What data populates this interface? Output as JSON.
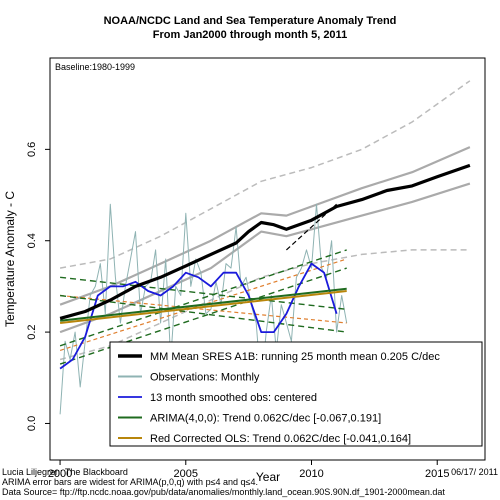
{
  "chart_data": {
    "type": "line",
    "title": "NOAA/NCDC Land and Sea Temperature Anomaly Trend",
    "subtitle": "From Jan2000 through month 5, 2011",
    "xlabel": "Year",
    "ylabel": "Temperature Anomaly - C",
    "xlim": [
      1999.6,
      2016.9
    ],
    "ylim": [
      -0.08,
      0.8
    ],
    "x_ticks": [
      2000,
      2005,
      2010,
      2015
    ],
    "y_ticks": [
      0.0,
      0.2,
      0.4,
      0.6
    ],
    "baseline_label": "Baseline:1980-1999",
    "legend_position": "bottom-right",
    "legend": [
      {
        "label": "MM Mean SRES A1B: running 25 month mean 0.205 C/dec",
        "color": "#000000"
      },
      {
        "label": "Observations: Monthly",
        "color": "#8fb3b3"
      },
      {
        "label": "13 month smoothed obs: centered",
        "color": "#1a1adb"
      },
      {
        "label": "ARIMA(4,0,0): Trend 0.062C/dec [-0.067,0.191]",
        "color": "#1f6b1f"
      },
      {
        "label": "Red Corrected OLS: Trend 0.062C/dec [-0.041,0.164]",
        "color": "#b8860b"
      }
    ],
    "series": [
      {
        "name": "MM Mean SRES A1B: running 25 month mean 0.205 C/dec",
        "color": "#000000",
        "x": [
          2000.0,
          2001.0,
          2002.0,
          2003.0,
          2004.0,
          2005.0,
          2006.0,
          2007.0,
          2007.5,
          2008.0,
          2008.5,
          2009.0,
          2010.0,
          2011.0,
          2012.0,
          2013.0,
          2014.0,
          2015.0,
          2016.3
        ],
        "y": [
          0.23,
          0.245,
          0.27,
          0.3,
          0.32,
          0.345,
          0.37,
          0.395,
          0.42,
          0.44,
          0.435,
          0.425,
          0.445,
          0.475,
          0.49,
          0.51,
          0.52,
          0.54,
          0.565
        ]
      },
      {
        "name": "MM spread upper",
        "color": "#aaaaaa",
        "x": [
          2000.0,
          2002.0,
          2004.0,
          2006.0,
          2008.0,
          2009.0,
          2010.0,
          2012.0,
          2014.0,
          2016.3
        ],
        "y": [
          0.26,
          0.3,
          0.35,
          0.4,
          0.46,
          0.455,
          0.475,
          0.515,
          0.55,
          0.605
        ]
      },
      {
        "name": "MM spread lower",
        "color": "#aaaaaa",
        "x": [
          2000.0,
          2002.0,
          2004.0,
          2006.0,
          2008.0,
          2009.0,
          2010.0,
          2012.0,
          2014.0,
          2016.3
        ],
        "y": [
          0.2,
          0.24,
          0.29,
          0.34,
          0.42,
          0.41,
          0.425,
          0.455,
          0.485,
          0.525
        ]
      },
      {
        "name": "MM envelope upper (dashed)",
        "color": "#bbbbbb",
        "x": [
          2000.0,
          2002.0,
          2004.0,
          2006.0,
          2008.0,
          2010.0,
          2012.0,
          2014.0,
          2016.3
        ],
        "y": [
          0.34,
          0.36,
          0.41,
          0.47,
          0.53,
          0.56,
          0.6,
          0.66,
          0.75
        ]
      },
      {
        "name": "MM envelope lower (dashed)",
        "color": "#bbbbbb",
        "x": [
          2000.0,
          2002.0,
          2004.0,
          2006.0,
          2008.0,
          2010.0,
          2012.0,
          2014.0,
          2016.3
        ],
        "y": [
          0.14,
          0.17,
          0.22,
          0.27,
          0.32,
          0.35,
          0.37,
          0.38,
          0.38
        ]
      },
      {
        "name": "Observations: Monthly",
        "color": "#8fb3b3",
        "x": [
          2000.0,
          2000.2,
          2000.4,
          2000.6,
          2000.8,
          2001.0,
          2001.2,
          2001.4,
          2001.6,
          2001.8,
          2002.0,
          2002.2,
          2002.4,
          2002.6,
          2002.8,
          2003.0,
          2003.2,
          2003.4,
          2003.6,
          2003.8,
          2004.0,
          2004.2,
          2004.4,
          2004.6,
          2004.8,
          2005.0,
          2005.2,
          2005.4,
          2005.6,
          2005.8,
          2006.0,
          2006.2,
          2006.4,
          2006.6,
          2006.8,
          2007.0,
          2007.2,
          2007.4,
          2007.6,
          2007.8,
          2008.0,
          2008.2,
          2008.4,
          2008.6,
          2008.8,
          2009.0,
          2009.2,
          2009.4,
          2009.6,
          2009.8,
          2010.0,
          2010.2,
          2010.4,
          2010.6,
          2010.8,
          2011.0,
          2011.2,
          2011.4
        ],
        "y": [
          0.02,
          0.18,
          0.14,
          0.2,
          0.08,
          0.18,
          0.28,
          0.3,
          0.35,
          0.24,
          0.48,
          0.32,
          0.22,
          0.3,
          0.36,
          0.42,
          0.24,
          0.3,
          0.31,
          0.38,
          0.22,
          0.36,
          0.14,
          0.3,
          0.28,
          0.46,
          0.3,
          0.36,
          0.33,
          0.24,
          0.25,
          0.31,
          0.26,
          0.35,
          0.34,
          0.43,
          0.3,
          0.32,
          0.26,
          0.22,
          0.08,
          0.2,
          0.28,
          0.16,
          0.26,
          0.22,
          0.18,
          0.32,
          0.34,
          0.38,
          0.34,
          0.48,
          0.34,
          0.32,
          0.4,
          0.2,
          0.28,
          0.22
        ]
      },
      {
        "name": "13 month smoothed obs: centered",
        "color": "#1a1adb",
        "x": [
          2000.0,
          2000.5,
          2001.0,
          2001.5,
          2002.0,
          2002.5,
          2003.0,
          2003.5,
          2004.0,
          2004.5,
          2005.0,
          2005.5,
          2006.0,
          2006.5,
          2007.0,
          2007.5,
          2008.0,
          2008.5,
          2009.0,
          2009.5,
          2010.0,
          2010.5,
          2011.0
        ],
        "y": [
          0.12,
          0.14,
          0.19,
          0.28,
          0.3,
          0.3,
          0.31,
          0.29,
          0.28,
          0.3,
          0.33,
          0.32,
          0.3,
          0.33,
          0.33,
          0.28,
          0.2,
          0.2,
          0.24,
          0.3,
          0.35,
          0.33,
          0.24
        ]
      },
      {
        "name": "ARIMA(4,0,0): Trend 0.062C/dec [-0.067,0.191]",
        "color": "#1f6b1f",
        "x": [
          2000.0,
          2011.4
        ],
        "y": [
          0.225,
          0.295
        ]
      },
      {
        "name": "Red Corrected OLS: Trend 0.062C/dec [-0.041,0.164]",
        "color": "#b8860b",
        "x": [
          2000.0,
          2011.4
        ],
        "y": [
          0.22,
          0.29
        ]
      },
      {
        "name": "ARIMA CI upper",
        "color": "#1f6b1f",
        "x": [
          2000.0,
          2011.4
        ],
        "y": [
          0.17,
          0.38
        ]
      },
      {
        "name": "ARIMA CI lower",
        "color": "#1f6b1f",
        "x": [
          2000.0,
          2011.4
        ],
        "y": [
          0.28,
          0.2
        ]
      },
      {
        "name": "ARIMA wide upper",
        "color": "#1f6b1f",
        "x": [
          2000.0,
          2011.4
        ],
        "y": [
          0.32,
          0.25
        ]
      },
      {
        "name": "ARIMA wide lower",
        "color": "#1f6b1f",
        "x": [
          2000.0,
          2011.4
        ],
        "y": [
          0.13,
          0.34
        ]
      },
      {
        "name": "OLS CI upper",
        "color": "#e08030",
        "x": [
          2000.0,
          2011.4
        ],
        "y": [
          0.16,
          0.36
        ]
      },
      {
        "name": "OLS CI lower",
        "color": "#e08030",
        "x": [
          2000.0,
          2011.4
        ],
        "y": [
          0.28,
          0.22
        ]
      },
      {
        "name": "extension dashed",
        "color": "#000000",
        "x": [
          2009.0,
          2011.0
        ],
        "y": [
          0.38,
          0.48
        ]
      }
    ]
  },
  "footer": {
    "author": "Lucia Liljegren: The Blackboard",
    "date": "06/17/ 2011",
    "note": "ARIMA error bars are widest for ARIMA(p,0,q) with p≤4 and q≤4.",
    "source": "Data Source= ftp://ftp.ncdc.noaa.gov/pub/data/anomalies/monthly.land_ocean.90S.90N.df_1901-2000mean.dat"
  }
}
